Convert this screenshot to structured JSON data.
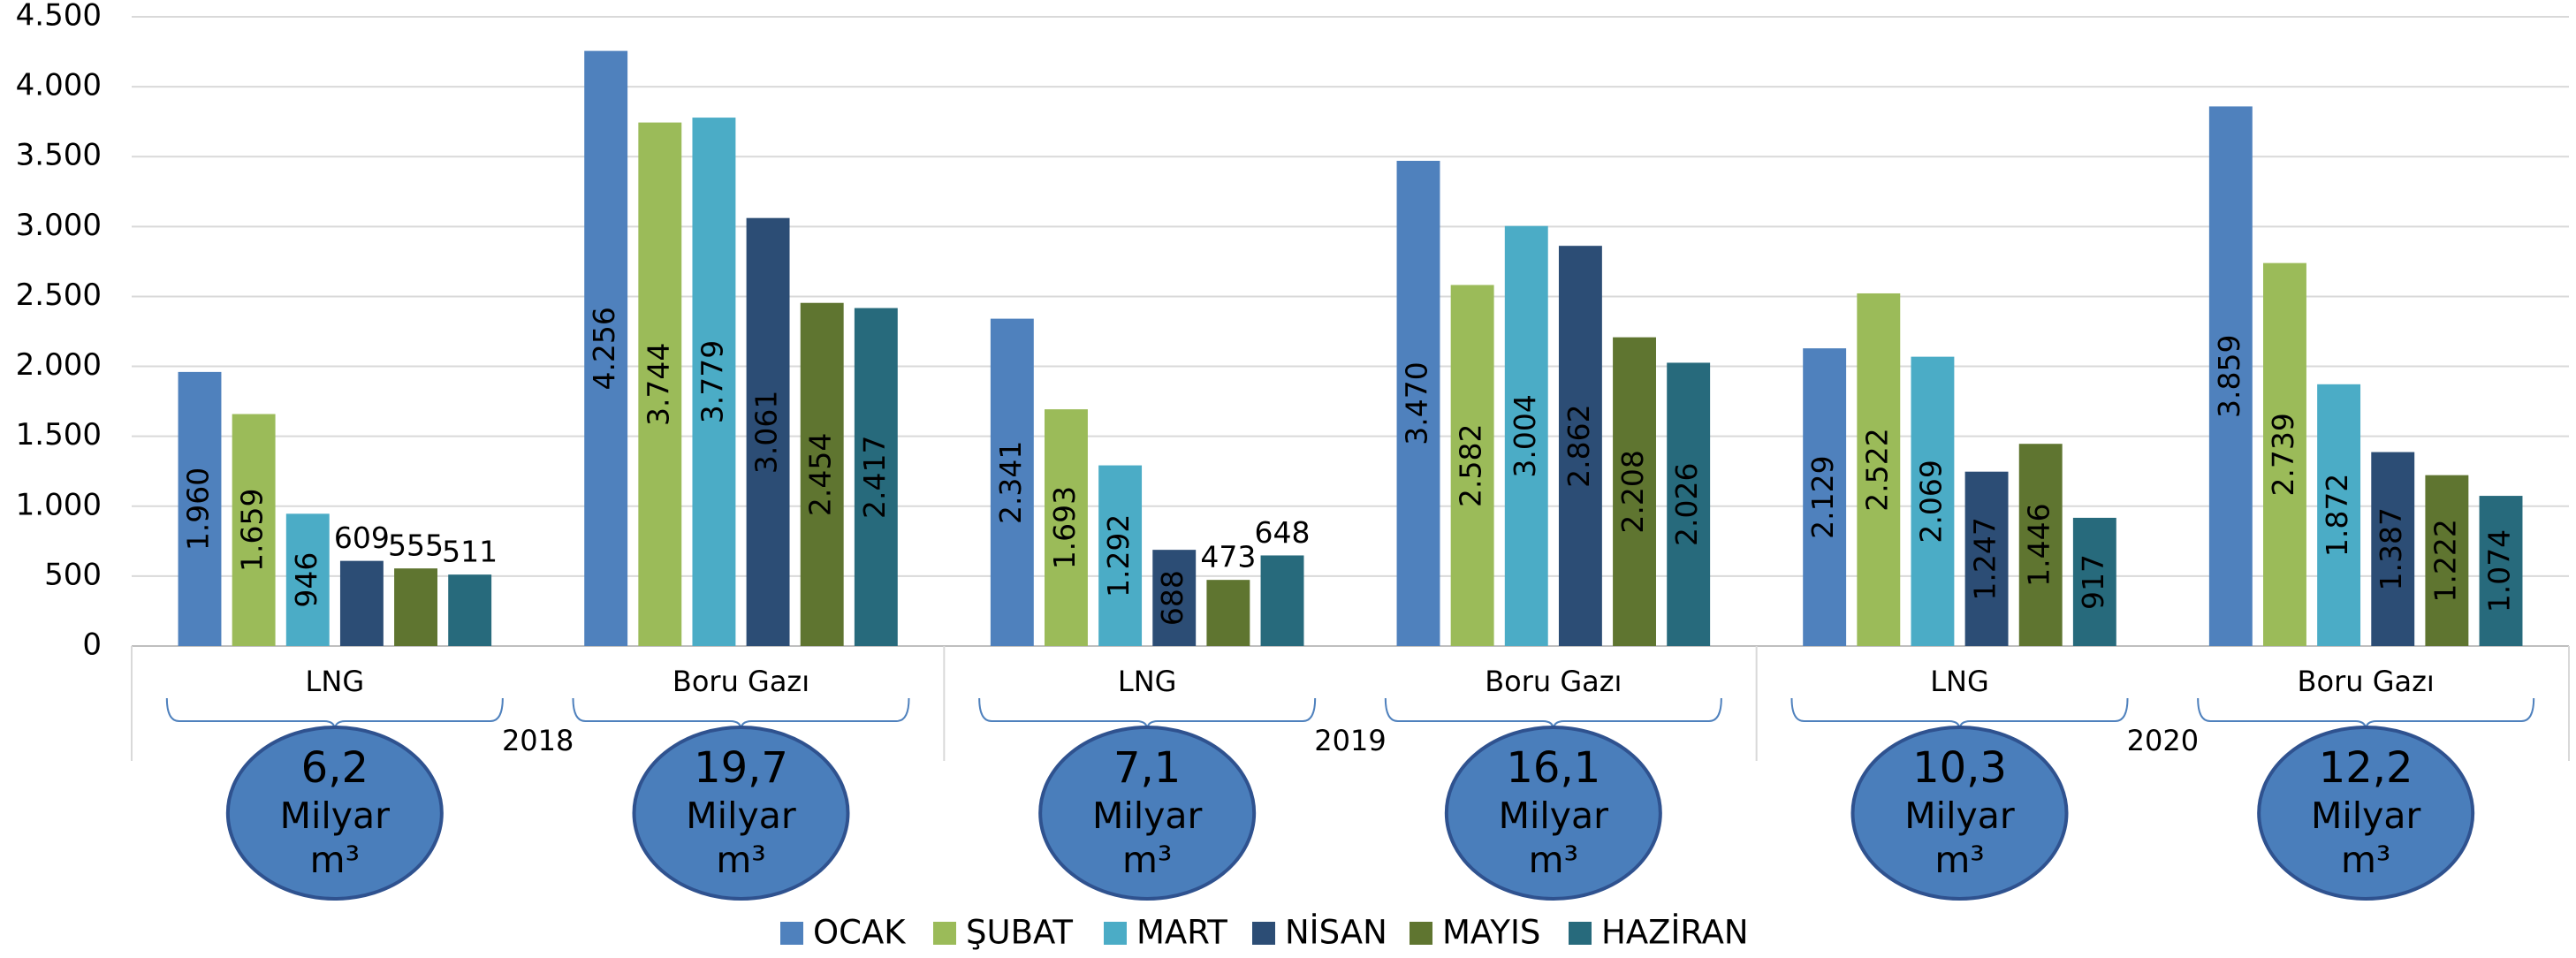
{
  "chart_data": {
    "type": "bar",
    "categories": [
      "LNG",
      "Boru Gazı",
      "LNG",
      "Boru Gazı",
      "LNG",
      "Boru Gazı"
    ],
    "groups": [
      "2018",
      "2019",
      "2020"
    ],
    "annotations": [
      "6,2",
      "19,7",
      "7,1",
      "16,1",
      "10,3",
      "12,2"
    ],
    "annotation_unit": [
      "Milyar",
      "m³"
    ],
    "series": [
      {
        "name": "OCAK",
        "color": "#4f81bd",
        "values": [
          1960,
          4256,
          2341,
          3470,
          2129,
          3859
        ],
        "value_labels": [
          "1.960",
          "4.256",
          "2.341",
          "3.470",
          "2.129",
          "3.859"
        ]
      },
      {
        "name": "ŞUBAT",
        "color": "#9bbb59",
        "values": [
          1659,
          3744,
          1693,
          2582,
          2522,
          2739
        ],
        "value_labels": [
          "1.659",
          "3.744",
          "1.693",
          "2.582",
          "2.522",
          "2.739"
        ]
      },
      {
        "name": "MART",
        "color": "#4bacc6",
        "values": [
          946,
          3779,
          1292,
          3004,
          2069,
          1872
        ],
        "value_labels": [
          "946",
          "3.779",
          "1.292",
          "3.004",
          "2.069",
          "1.872"
        ]
      },
      {
        "name": "NİSAN",
        "color": "#2c4d75",
        "values": [
          609,
          3061,
          688,
          2862,
          1247,
          1387
        ],
        "value_labels": [
          "609",
          "3.061",
          "688",
          "2.862",
          "1.247",
          "1.387"
        ]
      },
      {
        "name": "MAYIS",
        "color": "#5f7530",
        "values": [
          555,
          2454,
          473,
          2208,
          1446,
          1222
        ],
        "value_labels": [
          "555",
          "2.454",
          "473",
          "2.208",
          "1.446",
          "1.222"
        ]
      },
      {
        "name": "HAZİRAN",
        "color": "#276a7c",
        "values": [
          511,
          2417,
          648,
          2026,
          917,
          1074
        ],
        "value_labels": [
          "511",
          "2.417",
          "648",
          "2.026",
          "917",
          "1.074"
        ]
      }
    ],
    "ylim": [
      0,
      4500
    ],
    "yticks": [
      0,
      500,
      {
        "value": 1000,
        "label": "1.000"
      },
      {
        "value": 1500,
        "label": "1.500"
      },
      {
        "value": 2000,
        "label": "2.000"
      },
      {
        "value": 2500,
        "label": "2.500"
      },
      {
        "value": 3000,
        "label": "3.000"
      },
      {
        "value": 3500,
        "label": "3.500"
      },
      {
        "value": 4000,
        "label": "4.000"
      },
      {
        "value": 4500,
        "label": "4.500"
      }
    ],
    "grid": true,
    "legend": "bottom"
  }
}
